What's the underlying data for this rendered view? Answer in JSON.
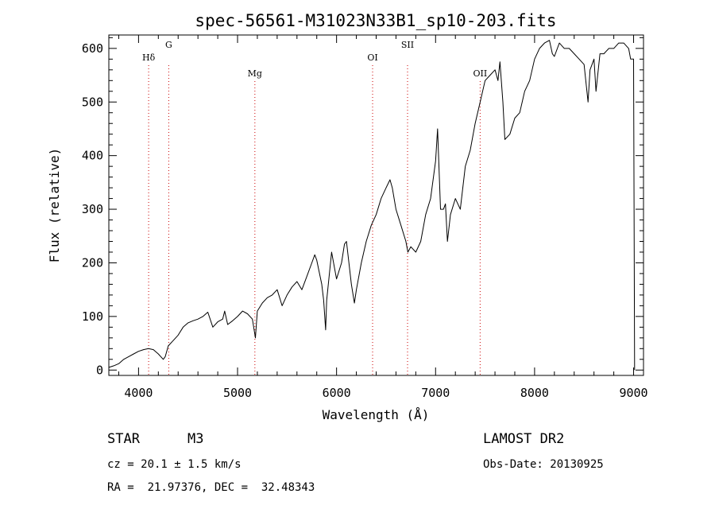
{
  "chart_data": {
    "type": "line",
    "title": "spec-56561-M31023N33B1_sp10-203.fits",
    "xlabel": "Wavelength (Å)",
    "ylabel": "Flux (relative)",
    "xlim": [
      3700,
      9100
    ],
    "ylim": [
      -10,
      625
    ],
    "xticks": [
      4000,
      5000,
      6000,
      7000,
      8000,
      9000
    ],
    "xtick_labels": [
      "4000",
      "5000",
      "6000",
      "7000",
      "8000",
      "9000"
    ],
    "yticks": [
      0,
      100,
      200,
      300,
      400,
      500,
      600
    ],
    "ytick_labels": [
      "0",
      "100",
      "200",
      "300",
      "400",
      "500",
      "600"
    ],
    "grid": false,
    "series": [
      {
        "name": "spectrum",
        "x": [
          3700,
          3750,
          3800,
          3850,
          3900,
          3950,
          4000,
          4050,
          4100,
          4150,
          4200,
          4250,
          4270,
          4300,
          4350,
          4400,
          4450,
          4500,
          4550,
          4600,
          4650,
          4700,
          4750,
          4800,
          4850,
          4870,
          4900,
          4950,
          5000,
          5050,
          5100,
          5150,
          5180,
          5200,
          5250,
          5300,
          5350,
          5400,
          5450,
          5500,
          5550,
          5600,
          5650,
          5700,
          5750,
          5780,
          5800,
          5850,
          5870,
          5890,
          5900,
          5950,
          6000,
          6050,
          6080,
          6100,
          6150,
          6180,
          6200,
          6250,
          6300,
          6350,
          6400,
          6450,
          6500,
          6540,
          6563,
          6600,
          6650,
          6700,
          6720,
          6750,
          6800,
          6850,
          6900,
          6950,
          7000,
          7020,
          7050,
          7080,
          7100,
          7120,
          7150,
          7200,
          7250,
          7300,
          7350,
          7400,
          7450,
          7500,
          7550,
          7600,
          7630,
          7650,
          7680,
          7700,
          7750,
          7800,
          7850,
          7900,
          7950,
          8000,
          8050,
          8100,
          8150,
          8180,
          8200,
          8250,
          8300,
          8350,
          8400,
          8450,
          8500,
          8540,
          8560,
          8600,
          8620,
          8660,
          8700,
          8750,
          8800,
          8850,
          8900,
          8950,
          8970,
          9000,
          9010
        ],
        "y": [
          5,
          8,
          12,
          20,
          25,
          30,
          35,
          38,
          40,
          38,
          30,
          20,
          25,
          45,
          55,
          65,
          80,
          88,
          92,
          95,
          100,
          108,
          80,
          90,
          95,
          110,
          85,
          92,
          100,
          110,
          105,
          95,
          60,
          110,
          125,
          135,
          140,
          150,
          120,
          140,
          155,
          165,
          150,
          175,
          200,
          215,
          205,
          160,
          130,
          75,
          130,
          220,
          170,
          200,
          235,
          240,
          160,
          125,
          150,
          200,
          240,
          270,
          290,
          320,
          340,
          355,
          340,
          300,
          270,
          240,
          220,
          230,
          220,
          240,
          290,
          320,
          390,
          450,
          300,
          300,
          310,
          240,
          290,
          320,
          300,
          380,
          410,
          460,
          500,
          540,
          550,
          560,
          540,
          575,
          500,
          430,
          440,
          470,
          480,
          520,
          540,
          580,
          600,
          610,
          615,
          590,
          585,
          610,
          600,
          600,
          590,
          580,
          570,
          500,
          560,
          580,
          520,
          590,
          590,
          600,
          600,
          610,
          610,
          600,
          580,
          580,
          0
        ],
        "color": "#000000"
      }
    ],
    "line_markers": [
      {
        "label": "Hδ",
        "x": 4102,
        "color": "#cc0000"
      },
      {
        "label": "G",
        "x": 4305,
        "color": "#cc0000"
      },
      {
        "label": "Mg",
        "x": 5175,
        "color": "#cc0000"
      },
      {
        "label": "OI",
        "x": 6364,
        "color": "#cc0000"
      },
      {
        "label": "SII",
        "x": 6717,
        "color": "#cc0000"
      },
      {
        "label": "OII",
        "x": 7450,
        "color": "#cc0000"
      }
    ]
  },
  "info": {
    "class": "STAR",
    "subclass": "M3",
    "survey": "LAMOST DR2",
    "cz": "cz = 20.1 ± 1.5 km/s",
    "obs_date": "Obs-Date: 20130925",
    "coords": "RA =  21.97376, DEC =  32.48343"
  }
}
